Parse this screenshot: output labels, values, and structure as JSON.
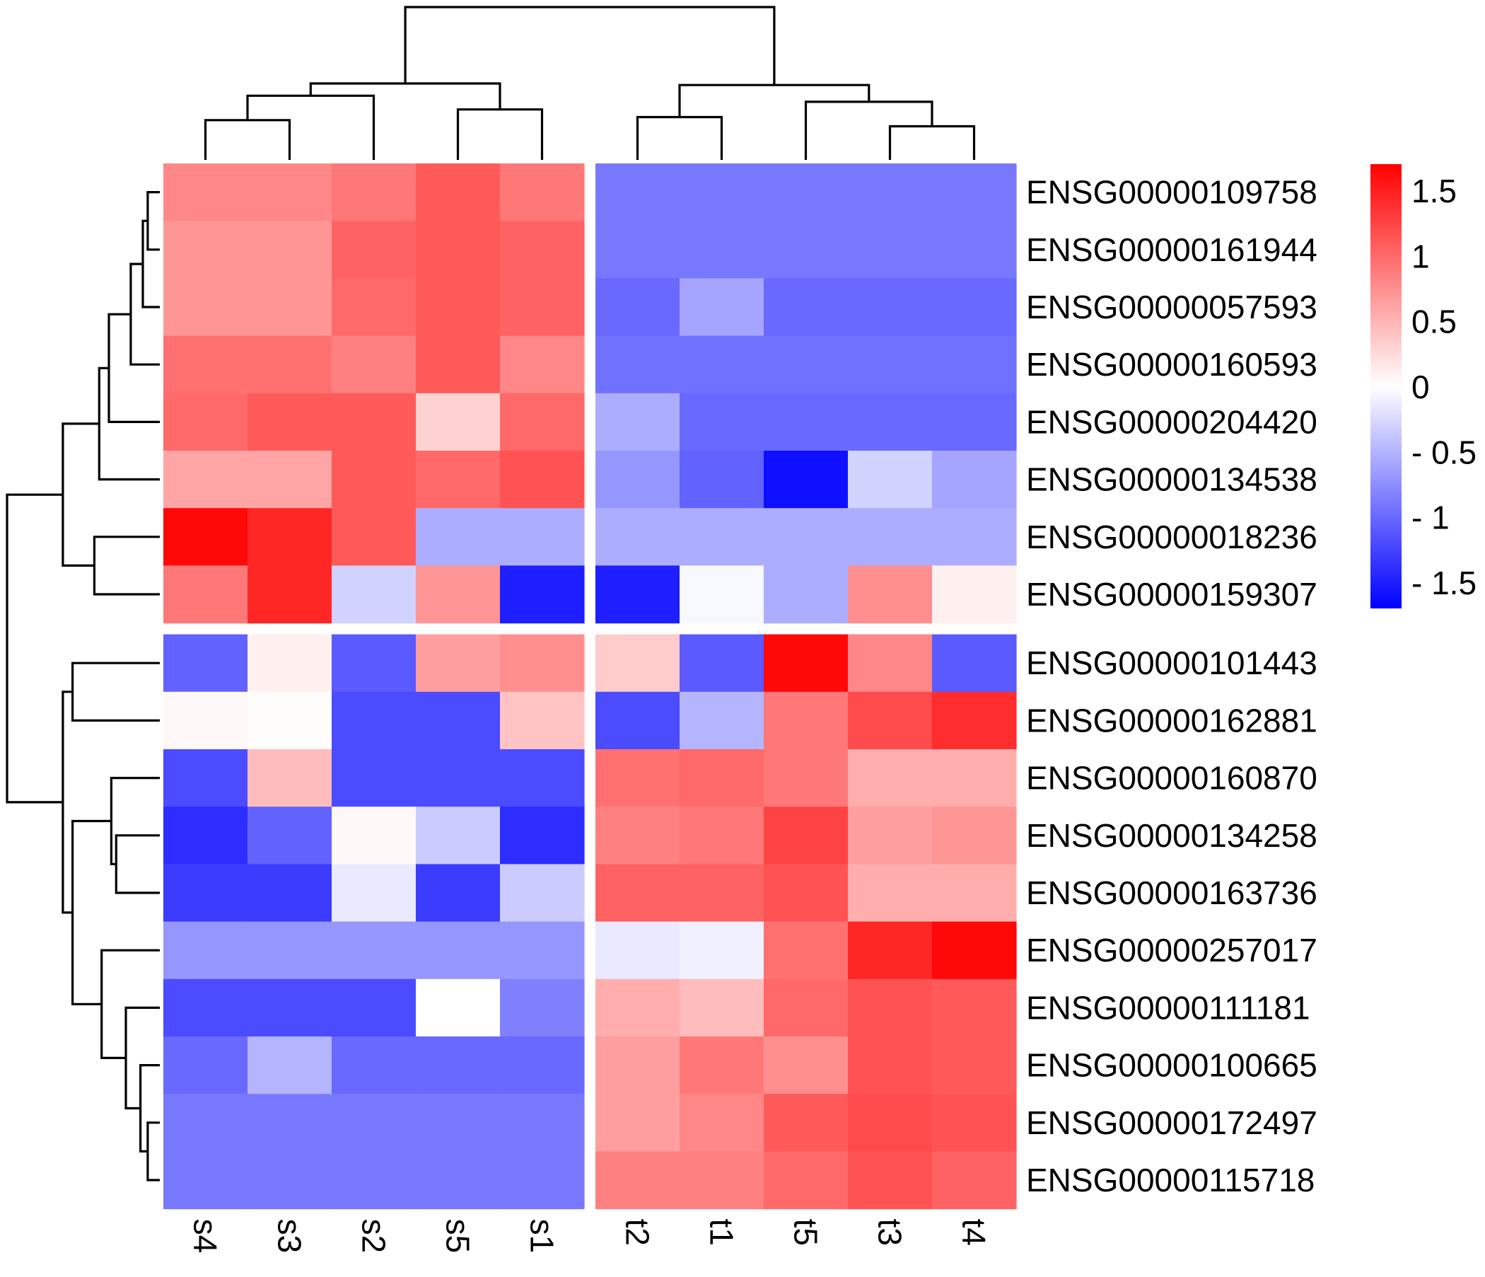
{
  "chart_data": {
    "type": "heatmap",
    "columns": [
      "s4",
      "s3",
      "s2",
      "s5",
      "s1",
      "t2",
      "t1",
      "t5",
      "t3",
      "t4"
    ],
    "rows": [
      "ENSG00000109758",
      "ENSG00000161944",
      "ENSG00000057593",
      "ENSG00000160593",
      "ENSG00000204420",
      "ENSG00000134538",
      "ENSG00000018236",
      "ENSG00000159307",
      "ENSG00000101443",
      "ENSG00000162881",
      "ENSG00000160870",
      "ENSG00000134258",
      "ENSG00000163736",
      "ENSG00000257017",
      "ENSG00000111181",
      "ENSG00000100665",
      "ENSG00000172497",
      "ENSG00000115718"
    ],
    "values": [
      [
        0.8,
        0.8,
        0.9,
        1.1,
        0.9,
        -0.9,
        -0.9,
        -0.9,
        -0.9,
        -0.9
      ],
      [
        0.7,
        0.7,
        1.05,
        1.1,
        1.05,
        -0.9,
        -0.9,
        -0.9,
        -0.9,
        -0.9
      ],
      [
        0.7,
        0.7,
        1.0,
        1.1,
        1.05,
        -1.0,
        -0.6,
        -1.0,
        -1.0,
        -1.0
      ],
      [
        0.95,
        0.95,
        0.85,
        1.1,
        0.8,
        -0.95,
        -0.95,
        -0.95,
        -0.95,
        -0.95
      ],
      [
        1.0,
        1.1,
        1.1,
        0.3,
        1.0,
        -0.55,
        -1.0,
        -1.0,
        -1.0,
        -1.0
      ],
      [
        0.6,
        0.6,
        1.1,
        1.0,
        1.15,
        -0.7,
        -1.05,
        -1.6,
        -0.3,
        -0.6
      ],
      [
        1.65,
        1.45,
        1.1,
        -0.55,
        -0.55,
        -0.55,
        -0.55,
        -0.55,
        -0.55,
        -0.55
      ],
      [
        0.9,
        1.45,
        -0.3,
        0.7,
        -1.5,
        -1.5,
        -0.05,
        -0.55,
        0.75,
        0.1
      ],
      [
        -1.05,
        0.1,
        -1.1,
        0.65,
        0.75,
        0.35,
        -1.1,
        1.65,
        0.8,
        -1.1
      ],
      [
        0.05,
        0.02,
        -1.2,
        -1.2,
        0.4,
        -1.2,
        -0.5,
        0.9,
        1.2,
        1.4
      ],
      [
        -1.2,
        0.45,
        -1.2,
        -1.2,
        -1.2,
        0.95,
        1.0,
        0.9,
        0.55,
        0.55
      ],
      [
        -1.4,
        -1.05,
        0.05,
        -0.35,
        -1.4,
        0.85,
        0.9,
        1.25,
        0.65,
        0.7
      ],
      [
        -1.3,
        -1.3,
        -0.15,
        -1.3,
        -0.35,
        1.05,
        1.05,
        1.15,
        0.55,
        0.55
      ],
      [
        -0.7,
        -0.7,
        -0.7,
        -0.7,
        -0.7,
        -0.15,
        -0.1,
        0.95,
        1.45,
        1.65
      ],
      [
        -1.2,
        -1.2,
        -1.2,
        0.0,
        -0.85,
        0.55,
        0.45,
        1.0,
        1.15,
        1.1
      ],
      [
        -1.0,
        -0.5,
        -1.0,
        -1.0,
        -1.0,
        0.65,
        0.9,
        0.75,
        1.15,
        1.1
      ],
      [
        -0.9,
        -0.9,
        -0.9,
        -0.9,
        -0.9,
        0.65,
        0.8,
        1.1,
        1.2,
        1.15
      ],
      [
        -0.9,
        -0.9,
        -0.9,
        -0.9,
        -0.9,
        0.85,
        0.85,
        1.0,
        1.15,
        1.05
      ]
    ],
    "column_split_after": 5,
    "row_split_after": 8,
    "col_dendrogram": {
      "leaves": [
        "s4",
        "s3",
        "s2",
        "s5",
        "s1",
        "t2",
        "t1",
        "t5",
        "t3",
        "t4"
      ],
      "merges": [
        [
          "s4",
          "s3"
        ],
        [
          "s5",
          "s1"
        ],
        [
          "m0",
          "s2"
        ],
        [
          "m2",
          "m1"
        ],
        [
          "t2",
          "t1"
        ],
        [
          "t3",
          "t4"
        ],
        [
          "t5",
          "m5"
        ],
        [
          "m4",
          "m6"
        ],
        [
          "m3",
          "m7"
        ]
      ],
      "heights": [
        0.26,
        0.33,
        0.42,
        0.5,
        0.28,
        0.22,
        0.38,
        0.49,
        1.0
      ]
    },
    "row_dendrogram": {
      "merges": [
        [
          0,
          1
        ],
        [
          2,
          "m0"
        ],
        [
          3,
          "m1"
        ],
        [
          4,
          "m2"
        ],
        [
          5,
          "m3"
        ],
        [
          6,
          7
        ],
        [
          "m4",
          "m5"
        ],
        [
          16,
          17
        ],
        [
          15,
          "m7"
        ],
        [
          14,
          "m8"
        ],
        [
          13,
          "m9"
        ],
        [
          11,
          12
        ],
        [
          10,
          "m11"
        ],
        [
          "m12",
          "m10"
        ],
        [
          8,
          9
        ],
        [
          "m14",
          "m13"
        ],
        [
          "m6",
          "m15"
        ]
      ],
      "heights": [
        0.05,
        0.07,
        0.12,
        0.21,
        0.25,
        0.27,
        0.4,
        0.05,
        0.08,
        0.14,
        0.24,
        0.18,
        0.2,
        0.36,
        0.36,
        0.4,
        0.63
      ]
    },
    "legend": {
      "ticks": [
        "1.5",
        "1",
        "0.5",
        "0",
        "- 0.5",
        "- 1",
        "- 1.5"
      ],
      "tick_values": [
        1.5,
        1.0,
        0.5,
        0.0,
        -0.5,
        -1.0,
        -1.5
      ],
      "range": [
        -1.7,
        1.7
      ],
      "colors": {
        "low": "#0000ff",
        "mid": "#ffffff",
        "high": "#ff0000"
      }
    }
  }
}
